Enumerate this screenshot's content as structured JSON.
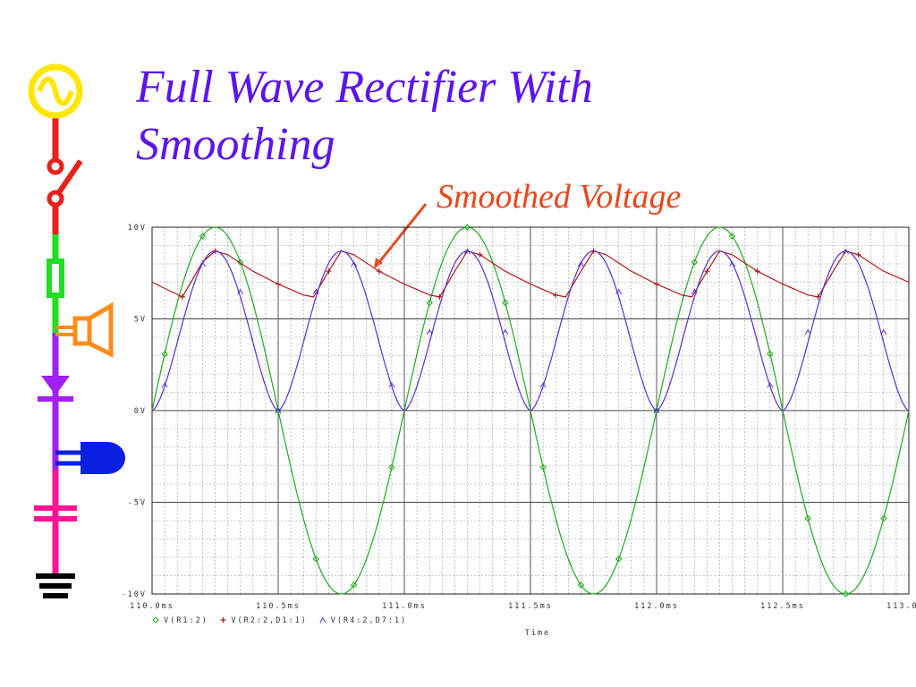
{
  "slide": {
    "title_line1": "Full Wave Rectifier With",
    "title_line2": "Smoothing",
    "annotation": "Smoothed Voltage"
  },
  "circuit_icons": [
    "ac-source-icon",
    "switch-icon",
    "fuse-icon",
    "speaker-icon",
    "diode-icon",
    "lamp-icon",
    "capacitor-icon",
    "ground-icon"
  ],
  "colors": {
    "title": "#5b14f0",
    "annotation": "#e8481e",
    "series_input": "#22aa22",
    "series_smoothed": "#b01818",
    "series_rectified": "#5a2fd0"
  },
  "chart_data": {
    "type": "line",
    "title": "",
    "xlabel": "Time",
    "ylabel": "",
    "xlim": [
      110.0,
      113.0
    ],
    "ylim": [
      -10,
      10
    ],
    "grid": true,
    "legend_position": "bottom-left",
    "x_tick_labels": [
      "110.0ms",
      "110.5ms",
      "111.0ms",
      "111.5ms",
      "112.0ms",
      "112.5ms",
      "113.0ms"
    ],
    "y_tick_labels": [
      "10V",
      "5V",
      "0V",
      "-5V",
      "-10V"
    ],
    "series": [
      {
        "name": "V(R1:2)",
        "marker": "diamond",
        "x": [
          110.0,
          110.05,
          110.1,
          110.15,
          110.2,
          110.25,
          110.3,
          110.35,
          110.4,
          110.45,
          110.5,
          110.55,
          110.6,
          110.65,
          110.7,
          110.75,
          110.8,
          110.85,
          110.9,
          110.95,
          111.0,
          111.05,
          111.1,
          111.15,
          111.2,
          111.25,
          111.3,
          111.35,
          111.4,
          111.45,
          111.5,
          111.55,
          111.6,
          111.65,
          111.7,
          111.75,
          111.8,
          111.85,
          111.9,
          111.95,
          112.0,
          112.05,
          112.1,
          112.15,
          112.2,
          112.25,
          112.3,
          112.35,
          112.4,
          112.45,
          112.5,
          112.55,
          112.6,
          112.65,
          112.7,
          112.75,
          112.8,
          112.85,
          112.9,
          112.95,
          113.0
        ],
        "values": [
          0,
          3.09,
          5.88,
          8.09,
          9.51,
          10,
          9.51,
          8.09,
          5.88,
          3.09,
          0,
          -3.09,
          -5.88,
          -8.09,
          -9.51,
          -10,
          -9.51,
          -8.09,
          -5.88,
          -3.09,
          0,
          3.09,
          5.88,
          8.09,
          9.51,
          10,
          9.51,
          8.09,
          5.88,
          3.09,
          0,
          -3.09,
          -5.88,
          -8.09,
          -9.51,
          -10,
          -9.51,
          -8.09,
          -5.88,
          -3.09,
          0,
          3.09,
          5.88,
          8.09,
          9.51,
          10,
          9.51,
          8.09,
          5.88,
          3.09,
          0,
          -3.09,
          -5.88,
          -8.09,
          -9.51,
          -10,
          -9.51,
          -8.09,
          -5.88,
          -3.09,
          0
        ]
      },
      {
        "name": "V(R2:2,D1:1)",
        "marker": "plus",
        "x": [
          110.0,
          110.12,
          110.15,
          110.2,
          110.25,
          110.3,
          110.4,
          110.5,
          110.6,
          110.64,
          110.7,
          110.75,
          110.8,
          110.9,
          111.0,
          111.1,
          111.14,
          111.2,
          111.25,
          111.3,
          111.4,
          111.5,
          111.6,
          111.64,
          111.7,
          111.75,
          111.8,
          111.9,
          112.0,
          112.1,
          112.14,
          112.2,
          112.25,
          112.3,
          112.4,
          112.5,
          112.6,
          112.64,
          112.7,
          112.75,
          112.8,
          112.9,
          113.0
        ],
        "values": [
          7.0,
          6.2,
          6.9,
          8.1,
          8.7,
          8.5,
          7.6,
          6.9,
          6.3,
          6.2,
          7.6,
          8.7,
          8.5,
          7.6,
          6.9,
          6.3,
          6.2,
          7.6,
          8.7,
          8.5,
          7.6,
          6.9,
          6.3,
          6.2,
          7.6,
          8.7,
          8.5,
          7.6,
          6.9,
          6.3,
          6.2,
          7.6,
          8.7,
          8.5,
          7.6,
          6.9,
          6.3,
          6.2,
          7.6,
          8.7,
          8.5,
          7.6,
          7.0
        ]
      },
      {
        "name": "V(R4:2,D7:1)",
        "marker": "triangle",
        "x": [
          110.0,
          110.05,
          110.1,
          110.15,
          110.2,
          110.25,
          110.3,
          110.35,
          110.4,
          110.45,
          110.5,
          110.55,
          110.6,
          110.65,
          110.7,
          110.75,
          110.8,
          110.85,
          110.9,
          110.95,
          111.0,
          111.05,
          111.1,
          111.15,
          111.2,
          111.25,
          111.3,
          111.35,
          111.4,
          111.45,
          111.5,
          111.55,
          111.6,
          111.65,
          111.7,
          111.75,
          111.8,
          111.85,
          111.9,
          111.95,
          112.0,
          112.05,
          112.1,
          112.15,
          112.2,
          112.25,
          112.3,
          112.35,
          112.4,
          112.45,
          112.5,
          112.55,
          112.6,
          112.65,
          112.7,
          112.75,
          112.8,
          112.85,
          112.9,
          112.95,
          113.0
        ],
        "values": [
          0,
          1.4,
          4.3,
          6.5,
          8.0,
          8.7,
          8.0,
          6.5,
          4.3,
          1.4,
          0,
          1.4,
          4.3,
          6.5,
          8.0,
          8.7,
          8.0,
          6.5,
          4.3,
          1.4,
          0,
          1.4,
          4.3,
          6.5,
          8.0,
          8.7,
          8.0,
          6.5,
          4.3,
          1.4,
          0,
          1.4,
          4.3,
          6.5,
          8.0,
          8.7,
          8.0,
          6.5,
          4.3,
          1.4,
          0,
          1.4,
          4.3,
          6.5,
          8.0,
          8.7,
          8.0,
          6.5,
          4.3,
          1.4,
          0,
          1.4,
          4.3,
          6.5,
          8.0,
          8.7,
          8.0,
          6.5,
          4.3,
          1.4,
          0
        ]
      }
    ]
  }
}
